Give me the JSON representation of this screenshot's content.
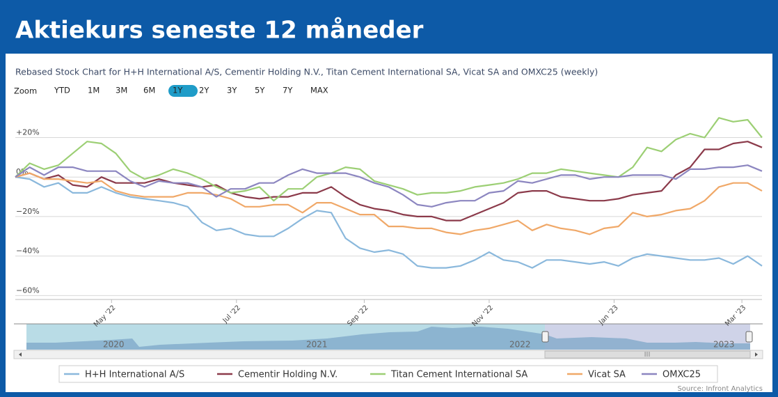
{
  "chart_data": {
    "type": "line",
    "title": "Aktiekurs seneste 12 måneder",
    "subtitle": "Rebased Stock Chart for H+H International A/S, Cementir Holding N.V., Titan Cement International SA, Vicat SA and OMXC25 (weekly)",
    "zoom": {
      "label": "Zoom",
      "buttons": [
        "YTD",
        "1M",
        "3M",
        "6M",
        "1Y",
        "2Y",
        "3Y",
        "5Y",
        "7Y",
        "MAX"
      ],
      "selected_index": 4
    },
    "x": [
      0,
      1,
      2,
      3,
      4,
      5,
      6,
      7,
      8,
      9,
      10,
      11,
      12,
      13,
      14,
      15,
      16,
      17,
      18,
      19,
      20,
      21,
      22,
      23,
      24,
      25,
      26,
      27,
      28,
      29,
      30,
      31,
      32,
      33,
      34,
      35,
      36,
      37,
      38,
      39,
      40,
      41,
      42,
      43,
      44,
      45,
      46,
      47,
      48,
      49,
      50,
      51,
      52
    ],
    "xlim": [
      0,
      52
    ],
    "xticks": [
      {
        "value": 6.7,
        "label": "May '22"
      },
      {
        "value": 15.4,
        "label": "Jul '22"
      },
      {
        "value": 24.3,
        "label": "Sep '22"
      },
      {
        "value": 33.0,
        "label": "Nov '22"
      },
      {
        "value": 41.7,
        "label": "Jan '23"
      },
      {
        "value": 50.6,
        "label": "Mar '23"
      }
    ],
    "ylim": [
      -62,
      35
    ],
    "yticks": [
      {
        "value": 20,
        "label": "+20%"
      },
      {
        "value": 0,
        "label": "0%"
      },
      {
        "value": -20,
        "label": "−20%"
      },
      {
        "value": -40,
        "label": "−40%"
      },
      {
        "value": -60,
        "label": "−60%"
      }
    ],
    "grid": true,
    "series": [
      {
        "name": "H+H International A/S",
        "color": "#8ab8dc",
        "values": [
          0,
          -1,
          -5,
          -3,
          -8,
          -8,
          -5,
          -8,
          -10,
          -11,
          -12,
          -13,
          -15,
          -23,
          -27,
          -26,
          -29,
          -30,
          -30,
          -26,
          -21,
          -17,
          -18,
          -31,
          -36,
          -38,
          -37,
          -39,
          -45,
          -46,
          -46,
          -45,
          -42,
          -38,
          -42,
          -43,
          -46,
          -42,
          -42,
          -43,
          -44,
          -43,
          -45,
          -41,
          -39,
          -40,
          -41,
          -42,
          -42,
          -41,
          -44,
          -40,
          -45
        ]
      },
      {
        "name": "Cementir Holding N.V.",
        "color": "#8b3a4a",
        "values": [
          0,
          2,
          -1,
          1,
          -4,
          -5,
          0,
          -3,
          -3,
          -3,
          -1,
          -3,
          -4,
          -5,
          -4,
          -8,
          -10,
          -11,
          -10,
          -10,
          -8,
          -8,
          -5,
          -10,
          -14,
          -16,
          -17,
          -19,
          -20,
          -20,
          -22,
          -22,
          -19,
          -16,
          -13,
          -8,
          -7,
          -7,
          -10,
          -11,
          -12,
          -12,
          -11,
          -9,
          -8,
          -7,
          1,
          5,
          14,
          14,
          17,
          18,
          15
        ]
      },
      {
        "name": "Titan Cement International SA",
        "color": "#9ccf74",
        "values": [
          0,
          7,
          4,
          6,
          12,
          18,
          17,
          12,
          3,
          -1,
          1,
          4,
          2,
          -1,
          -5,
          -8,
          -7,
          -5,
          -12,
          -6,
          -6,
          0,
          2,
          5,
          4,
          -2,
          -4,
          -6,
          -9,
          -8,
          -8,
          -7,
          -5,
          -4,
          -3,
          -1,
          2,
          2,
          4,
          3,
          2,
          1,
          0,
          5,
          15,
          13,
          19,
          22,
          20,
          30,
          28,
          29,
          20
        ]
      },
      {
        "name": "Vicat SA",
        "color": "#f0a868",
        "values": [
          0,
          2,
          -1,
          -1,
          -2,
          -3,
          -2,
          -7,
          -9,
          -10,
          -10,
          -10,
          -8,
          -8,
          -9,
          -11,
          -15,
          -15,
          -14,
          -14,
          -18,
          -13,
          -13,
          -16,
          -19,
          -19,
          -25,
          -25,
          -26,
          -26,
          -28,
          -29,
          -27,
          -26,
          -24,
          -22,
          -27,
          -24,
          -26,
          -27,
          -29,
          -26,
          -25,
          -18,
          -20,
          -19,
          -17,
          -16,
          -12,
          -5,
          -3,
          -3,
          -7
        ]
      },
      {
        "name": "OMXC25",
        "color": "#8c86c0",
        "values": [
          0,
          5,
          1,
          5,
          5,
          3,
          3,
          3,
          -2,
          -5,
          -2,
          -3,
          -3,
          -5,
          -10,
          -6,
          -6,
          -3,
          -3,
          1,
          4,
          2,
          2,
          2,
          0,
          -3,
          -5,
          -9,
          -14,
          -15,
          -13,
          -12,
          -12,
          -8,
          -7,
          -2,
          -3,
          -1,
          1,
          1,
          -1,
          0,
          0,
          1,
          1,
          1,
          -1,
          4,
          4,
          5,
          5,
          6,
          3
        ]
      }
    ],
    "navigator": {
      "labels": [
        "2020",
        "2021",
        "2022",
        "2023"
      ]
    },
    "scrollbar_label": "III",
    "source": "Source: Infront Analytics"
  }
}
